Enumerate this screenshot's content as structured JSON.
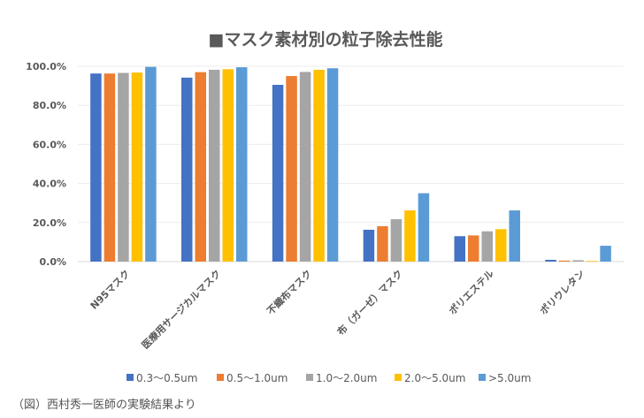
{
  "chart_data": {
    "type": "bar",
    "title": "■マスク素材別の粒子除去性能",
    "xlabel": "",
    "ylabel": "",
    "ylim": [
      0,
      100
    ],
    "yticks": [
      0,
      20,
      40,
      60,
      80,
      100
    ],
    "ytick_labels": [
      "0.0%",
      "20.0%",
      "40.0%",
      "60.0%",
      "80.0%",
      "100.0%"
    ],
    "grid": true,
    "legend_position": "bottom",
    "categories": [
      "N95マスク",
      "医療用サージカルマスク",
      "不織布マスク",
      "布（ガーゼ）マスク",
      "ポリエステル",
      "ポリウレタン"
    ],
    "series": [
      {
        "name": "0.3〜0.5um",
        "color": "#4472C4",
        "values": [
          96.3,
          94.2,
          90.5,
          16.3,
          13.0,
          0.9
        ]
      },
      {
        "name": "0.5〜1.0um",
        "color": "#ED7D31",
        "values": [
          96.3,
          97.0,
          95.0,
          18.1,
          13.4,
          0.5
        ]
      },
      {
        "name": "1.0〜2.0um",
        "color": "#A5A5A5",
        "values": [
          96.6,
          98.2,
          97.1,
          21.7,
          15.5,
          0.7
        ]
      },
      {
        "name": "2.0〜5.0um",
        "color": "#FFC000",
        "values": [
          96.8,
          98.5,
          98.2,
          26.2,
          16.6,
          0.3
        ]
      },
      {
        "name": ">5.0um",
        "color": "#5B9BD5",
        "values": [
          99.7,
          99.5,
          99.0,
          35.0,
          26.2,
          8.1
        ]
      }
    ]
  },
  "caption": "（図）西村秀一医師の実験結果より"
}
